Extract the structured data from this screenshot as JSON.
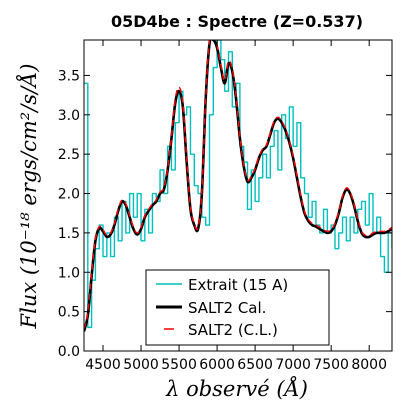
{
  "chart_data": {
    "type": "line",
    "title": "05D4be : Spectre (Z=0.537)",
    "xlabel": "λ observé (Å)",
    "ylabel": "Flux (10⁻¹⁸ ergs/cm²/s/Å)",
    "xlim": [
      4250,
      8300
    ],
    "ylim": [
      0.0,
      3.95
    ],
    "xticks": [
      4500,
      5000,
      5500,
      6000,
      6500,
      7000,
      7500,
      8000
    ],
    "yticks": [
      0.0,
      0.5,
      1.0,
      1.5,
      2.0,
      2.5,
      3.0,
      3.5
    ],
    "ytick_labels": [
      "0.0",
      "0.5",
      "1.0",
      "1.5",
      "2.0",
      "2.5",
      "3.0",
      "3.5"
    ],
    "grid": false,
    "legend_position": "bottom-center",
    "x": [
      4250,
      4300,
      4350,
      4400,
      4450,
      4500,
      4550,
      4600,
      4650,
      4700,
      4750,
      4800,
      4850,
      4900,
      4950,
      5000,
      5050,
      5100,
      5150,
      5200,
      5250,
      5300,
      5350,
      5400,
      5450,
      5500,
      5550,
      5600,
      5650,
      5700,
      5750,
      5800,
      5850,
      5900,
      5950,
      6000,
      6050,
      6100,
      6150,
      6200,
      6250,
      6300,
      6350,
      6400,
      6450,
      6500,
      6550,
      6600,
      6650,
      6700,
      6750,
      6800,
      6850,
      6900,
      6950,
      7000,
      7050,
      7100,
      7150,
      7200,
      7250,
      7300,
      7350,
      7400,
      7450,
      7500,
      7550,
      7600,
      7650,
      7700,
      7750,
      7800,
      7850,
      7900,
      7950,
      8000,
      8050,
      8100,
      8150,
      8200,
      8250,
      8300
    ],
    "series": [
      {
        "name": "Extrait (15 A)",
        "color": "#00bfbf",
        "style": "step",
        "values": [
          3.4,
          0.3,
          0.9,
          1.3,
          1.6,
          1.2,
          1.5,
          1.2,
          1.7,
          1.4,
          1.9,
          1.5,
          2.0,
          1.7,
          2.0,
          1.4,
          1.8,
          1.5,
          2.0,
          1.9,
          2.3,
          2.0,
          2.6,
          2.3,
          2.9,
          3.3,
          3.0,
          3.1,
          2.5,
          2.1,
          2.0,
          1.7,
          1.6,
          3.0,
          3.6,
          3.95,
          3.7,
          3.3,
          3.8,
          3.1,
          3.4,
          2.6,
          2.4,
          1.8,
          2.3,
          1.9,
          2.2,
          2.5,
          2.2,
          2.6,
          2.8,
          2.3,
          3.0,
          2.7,
          3.1,
          2.6,
          2.9,
          2.2,
          2.0,
          1.7,
          1.9,
          1.6,
          1.5,
          1.8,
          1.5,
          1.6,
          1.3,
          1.5,
          1.7,
          1.4,
          1.7,
          1.5,
          1.8,
          1.9,
          1.6,
          2.0,
          1.5,
          1.7,
          1.2,
          1.0,
          1.5,
          1.3
        ]
      },
      {
        "name": "SALT2 Cal.",
        "color": "#000000",
        "style": "line",
        "values": [
          0.25,
          0.45,
          0.95,
          1.4,
          1.56,
          1.52,
          1.45,
          1.48,
          1.6,
          1.78,
          1.9,
          1.85,
          1.7,
          1.55,
          1.48,
          1.55,
          1.7,
          1.78,
          1.85,
          1.9,
          2.0,
          2.05,
          2.3,
          2.7,
          3.15,
          3.3,
          3.1,
          2.4,
          1.8,
          1.6,
          1.55,
          2.0,
          3.2,
          3.9,
          3.95,
          3.85,
          3.6,
          3.4,
          3.65,
          3.55,
          3.2,
          2.7,
          2.35,
          2.15,
          2.2,
          2.3,
          2.45,
          2.55,
          2.6,
          2.75,
          2.9,
          2.95,
          2.9,
          2.8,
          2.65,
          2.45,
          2.2,
          1.95,
          1.75,
          1.65,
          1.6,
          1.58,
          1.55,
          1.52,
          1.5,
          1.52,
          1.6,
          1.75,
          1.95,
          2.05,
          2.0,
          1.85,
          1.65,
          1.5,
          1.45,
          1.45,
          1.48,
          1.5,
          1.5,
          1.5,
          1.52,
          1.55
        ]
      },
      {
        "name": "SALT2 (C.L.)",
        "color": "#ff0000",
        "style": "dashed",
        "values": [
          0.28,
          0.48,
          0.98,
          1.42,
          1.58,
          1.54,
          1.47,
          1.5,
          1.62,
          1.8,
          1.92,
          1.87,
          1.72,
          1.57,
          1.5,
          1.57,
          1.72,
          1.8,
          1.87,
          1.92,
          2.02,
          2.07,
          2.32,
          2.72,
          3.2,
          3.35,
          3.14,
          2.44,
          1.82,
          1.62,
          1.57,
          2.02,
          3.22,
          3.93,
          3.98,
          3.88,
          3.63,
          3.43,
          3.68,
          3.58,
          3.23,
          2.72,
          2.37,
          2.17,
          2.22,
          2.32,
          2.47,
          2.57,
          2.62,
          2.77,
          2.92,
          2.97,
          2.92,
          2.82,
          2.67,
          2.47,
          2.22,
          1.97,
          1.77,
          1.67,
          1.62,
          1.6,
          1.57,
          1.54,
          1.52,
          1.54,
          1.62,
          1.77,
          1.97,
          2.07,
          2.02,
          1.87,
          1.67,
          1.52,
          1.47,
          1.47,
          1.5,
          1.52,
          1.52,
          1.52,
          1.54,
          1.57
        ]
      }
    ]
  }
}
